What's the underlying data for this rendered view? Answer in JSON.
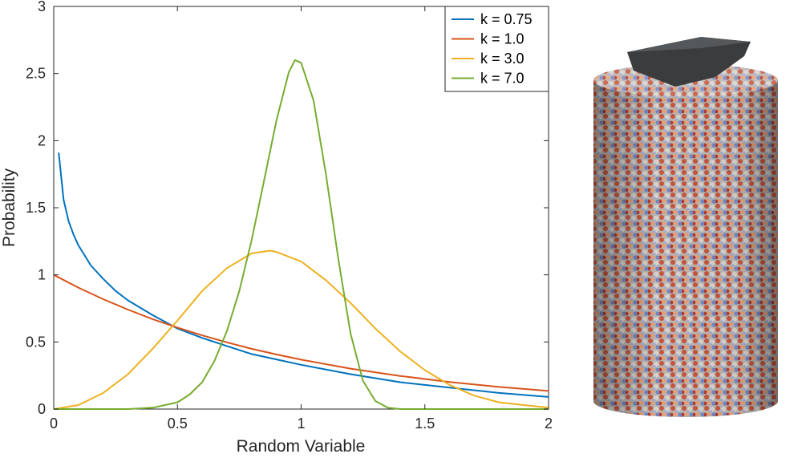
{
  "chart_data": {
    "type": "line",
    "title": "",
    "xlabel": "Random Variable",
    "ylabel": "Probability",
    "xlim": [
      0,
      2
    ],
    "ylim": [
      0,
      3
    ],
    "grid": false,
    "legend_position": "top-right",
    "xticks": [
      "0",
      "0.5",
      "1",
      "1.5",
      "2"
    ],
    "yticks": [
      "0",
      "0.5",
      "1",
      "1.5",
      "2",
      "2.5",
      "3"
    ],
    "series": [
      {
        "name": "k = 0.75",
        "color": "#0072BD",
        "x": [
          0.02,
          0.04,
          0.06,
          0.08,
          0.1,
          0.15,
          0.2,
          0.25,
          0.3,
          0.4,
          0.5,
          0.6,
          0.7,
          0.8,
          0.9,
          1.0,
          1.2,
          1.4,
          1.6,
          1.8,
          2.0
        ],
        "y": [
          1.91,
          1.56,
          1.4,
          1.3,
          1.22,
          1.07,
          0.97,
          0.88,
          0.81,
          0.7,
          0.6,
          0.53,
          0.47,
          0.41,
          0.37,
          0.33,
          0.26,
          0.2,
          0.16,
          0.12,
          0.09
        ]
      },
      {
        "name": "k = 1.0",
        "color": "#D95319",
        "x": [
          0,
          0.1,
          0.2,
          0.3,
          0.4,
          0.5,
          0.6,
          0.7,
          0.8,
          0.9,
          1.0,
          1.2,
          1.4,
          1.6,
          1.8,
          2.0
        ],
        "y": [
          1.0,
          0.905,
          0.819,
          0.741,
          0.67,
          0.607,
          0.549,
          0.497,
          0.449,
          0.407,
          0.368,
          0.301,
          0.247,
          0.202,
          0.165,
          0.135
        ]
      },
      {
        "name": "k = 3.0",
        "color": "#EDB120",
        "x": [
          0,
          0.1,
          0.2,
          0.3,
          0.4,
          0.5,
          0.6,
          0.7,
          0.8,
          0.875,
          0.9,
          1.0,
          1.1,
          1.2,
          1.3,
          1.4,
          1.5,
          1.6,
          1.7,
          1.8,
          1.9,
          2.0
        ],
        "y": [
          0,
          0.03,
          0.12,
          0.26,
          0.45,
          0.66,
          0.88,
          1.05,
          1.16,
          1.18,
          1.17,
          1.1,
          0.96,
          0.79,
          0.6,
          0.43,
          0.29,
          0.18,
          0.1,
          0.05,
          0.03,
          0.01
        ]
      },
      {
        "name": "k = 7.0",
        "color": "#77AC30",
        "x": [
          0,
          0.3,
          0.4,
          0.5,
          0.55,
          0.6,
          0.65,
          0.7,
          0.75,
          0.8,
          0.85,
          0.9,
          0.95,
          0.975,
          1.0,
          1.05,
          1.1,
          1.15,
          1.2,
          1.25,
          1.3,
          1.35,
          1.4,
          1.5,
          2.0
        ],
        "y": [
          0,
          0.0,
          0.01,
          0.05,
          0.11,
          0.2,
          0.36,
          0.58,
          0.88,
          1.26,
          1.7,
          2.15,
          2.51,
          2.6,
          2.58,
          2.3,
          1.75,
          1.12,
          0.56,
          0.21,
          0.06,
          0.01,
          0.0,
          0.0,
          0.0
        ]
      }
    ]
  },
  "figure": {
    "illustration": "cylinder-particle-packing-icon"
  }
}
